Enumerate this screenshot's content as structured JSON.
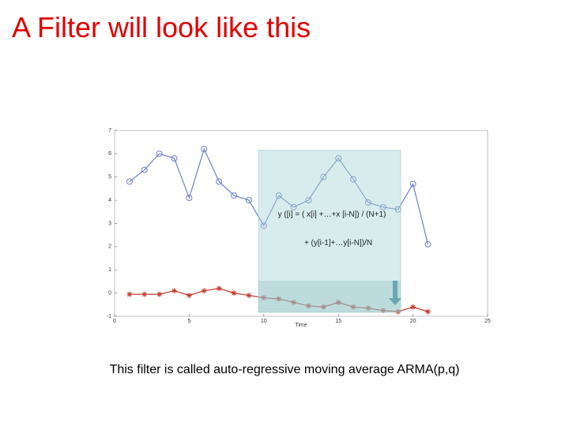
{
  "slide_title": "A Filter will look like this",
  "caption": "This filter is called auto-regressive moving average ARMA(p,q)",
  "chart_data": {
    "type": "line",
    "xlabel": "Time",
    "x": [
      1,
      2,
      3,
      4,
      5,
      6,
      7,
      8,
      9,
      10,
      11,
      12,
      13,
      14,
      15,
      16,
      17,
      18,
      19,
      20,
      21
    ],
    "series": [
      {
        "color": "#7080c8",
        "marker": "circle",
        "values": [
          4.8,
          5.3,
          6.0,
          5.8,
          4.1,
          6.2,
          4.8,
          4.2,
          4.0,
          2.9,
          4.2,
          3.7,
          4.0,
          5.0,
          5.8,
          4.9,
          3.9,
          3.7,
          3.6,
          4.7,
          2.1
        ]
      },
      {
        "color": "#c0392b",
        "marker": "star",
        "values": [
          -0.05,
          -0.05,
          -0.05,
          0.1,
          -0.1,
          0.1,
          0.2,
          0,
          -0.1,
          -0.2,
          -0.25,
          -0.4,
          -0.55,
          -0.6,
          -0.4,
          -0.6,
          -0.65,
          -0.75,
          -0.8,
          -0.6,
          -0.8
        ]
      }
    ],
    "xlim": [
      0,
      25
    ],
    "xticks": [
      0,
      5,
      10,
      15,
      20,
      25
    ],
    "ylim": [
      -1,
      7
    ],
    "yticks": [
      -1,
      0,
      1,
      2,
      3,
      4,
      5,
      6,
      7
    ],
    "annotations": [
      "y ([i] = ( x[i] +…+x [i-N]) / (N+1)",
      "+ (y[i-1]+…y[i-N])/N"
    ]
  }
}
